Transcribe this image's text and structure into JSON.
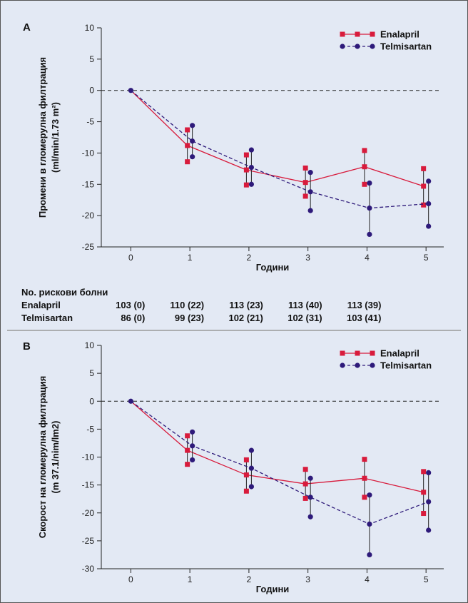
{
  "chart_data": [
    {
      "panel_label": "A",
      "type": "line",
      "ylabel_line1": "Промени в гломерулна филтрация",
      "ylabel_line2": "(ml/min/1.73 m²)",
      "xlabel": "Години",
      "x": [
        0,
        1,
        2,
        3,
        4,
        5
      ],
      "xlim": [
        -0.5,
        5.3
      ],
      "ylim": [
        -25,
        10
      ],
      "yticks": [
        10,
        5,
        0,
        -5,
        -10,
        -15,
        -20,
        -25
      ],
      "reference_line": 0,
      "legend_position": "top-right",
      "series": [
        {
          "name": "Enalapril",
          "color": "#d81b3c",
          "marker": "square",
          "line": "solid",
          "values": [
            0,
            -8.8,
            -12.7,
            -14.7,
            -12.2,
            -15.3
          ],
          "err_high": [
            0,
            -6.3,
            -10.3,
            -12.4,
            -9.6,
            -12.5
          ],
          "err_low": [
            0,
            -11.4,
            -15.1,
            -16.9,
            -15.0,
            -18.3
          ]
        },
        {
          "name": "Telmisartan",
          "color": "#2e1a7a",
          "marker": "circle",
          "line": "dashed",
          "values": [
            0,
            -8.1,
            -12.3,
            -16.2,
            -18.8,
            -18.1
          ],
          "err_high": [
            0,
            -5.6,
            -9.5,
            -13.1,
            -14.8,
            -14.5
          ],
          "err_low": [
            0,
            -10.6,
            -15.0,
            -19.2,
            -23.0,
            -21.7
          ]
        }
      ]
    },
    {
      "panel_label": "B",
      "type": "line",
      "ylabel_line1": "Скорост на гломерулна филтрация",
      "ylabel_line2": "(m 37.1/nim/lm2)",
      "xlabel": "Години",
      "x": [
        0,
        1,
        2,
        3,
        4,
        5
      ],
      "xlim": [
        -0.5,
        5.3
      ],
      "ylim": [
        -30,
        10
      ],
      "yticks": [
        10,
        5,
        0,
        -5,
        -10,
        -15,
        -20,
        -25,
        -30
      ],
      "reference_line": 0,
      "legend_position": "top-right",
      "series": [
        {
          "name": "Enalapril",
          "color": "#d81b3c",
          "marker": "square",
          "line": "solid",
          "values": [
            0,
            -8.8,
            -13.2,
            -14.8,
            -13.8,
            -16.3
          ],
          "err_high": [
            0,
            -6.2,
            -10.5,
            -12.2,
            -10.4,
            -12.6
          ],
          "err_low": [
            0,
            -11.3,
            -16.1,
            -17.4,
            -17.2,
            -20.1
          ]
        },
        {
          "name": "Telmisartan",
          "color": "#2e1a7a",
          "marker": "circle",
          "line": "dashed",
          "values": [
            0,
            -8.0,
            -12.0,
            -17.2,
            -22.0,
            -18.0
          ],
          "err_high": [
            0,
            -5.5,
            -8.8,
            -13.8,
            -16.8,
            -12.8
          ],
          "err_low": [
            0,
            -10.5,
            -15.3,
            -20.7,
            -27.5,
            -23.1
          ]
        }
      ]
    }
  ],
  "risk_table": {
    "title": "No. рискови болни",
    "rows": [
      {
        "label": "Enalapril",
        "values": [
          "103 (0)",
          "110 (22)",
          "113 (23)",
          "113 (40)",
          "113 (39)"
        ]
      },
      {
        "label": "Telmisartan",
        "values": [
          "86 (0)",
          "99 (23)",
          "102 (21)",
          "102 (31)",
          "103 (41)"
        ]
      }
    ]
  }
}
